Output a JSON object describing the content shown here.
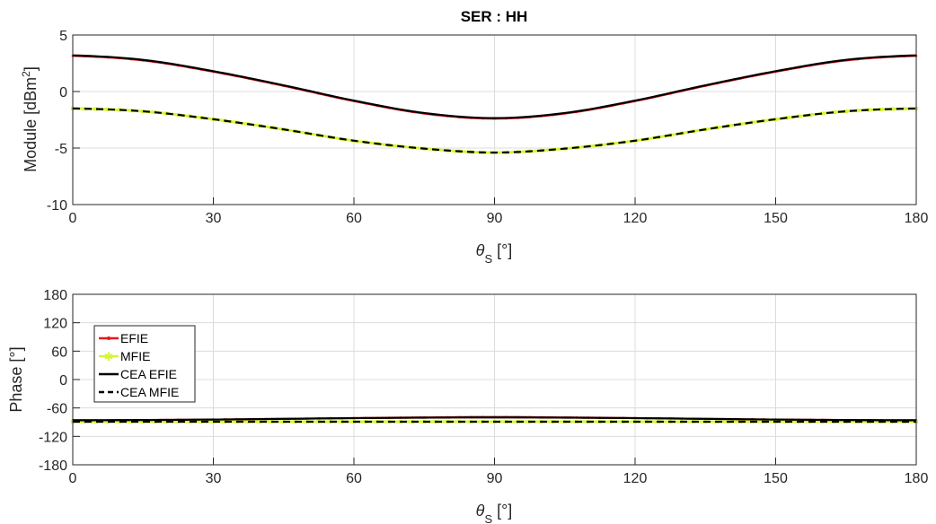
{
  "chart_data": [
    {
      "type": "line",
      "title": "SER  : HH",
      "xlabel": "θS [°]",
      "ylabel": "Module [dBm2]",
      "xlim": [
        0,
        180
      ],
      "ylim": [
        -10,
        5
      ],
      "xticks": [
        0,
        30,
        60,
        90,
        120,
        150,
        180
      ],
      "yticks": [
        -10,
        -5,
        0,
        5
      ],
      "grid": true,
      "x": [
        0,
        15,
        30,
        45,
        60,
        75,
        90,
        105,
        120,
        135,
        150,
        165,
        180
      ],
      "series": [
        {
          "name": "EFIE",
          "color": "#e8161b",
          "style": "solid-dots",
          "values": [
            3.15,
            2.75,
            1.75,
            0.5,
            -0.85,
            -1.95,
            -2.4,
            -1.95,
            -0.85,
            0.5,
            1.75,
            2.75,
            3.15
          ]
        },
        {
          "name": "MFIE",
          "color": "#d4f53a",
          "style": "solid-stars",
          "values": [
            -1.5,
            -1.75,
            -2.45,
            -3.35,
            -4.35,
            -5.05,
            -5.4,
            -5.05,
            -4.35,
            -3.35,
            -2.45,
            -1.75,
            -1.5
          ]
        },
        {
          "name": "CEA EFIE",
          "color": "#000000",
          "style": "solid",
          "values": [
            3.2,
            2.8,
            1.8,
            0.55,
            -0.8,
            -1.9,
            -2.35,
            -1.9,
            -0.8,
            0.55,
            1.8,
            2.8,
            3.2
          ]
        },
        {
          "name": "CEA MFIE",
          "color": "#000000",
          "style": "dashed",
          "values": [
            -1.5,
            -1.75,
            -2.45,
            -3.35,
            -4.35,
            -5.05,
            -5.4,
            -5.05,
            -4.35,
            -3.35,
            -2.45,
            -1.75,
            -1.5
          ]
        }
      ]
    },
    {
      "type": "line",
      "title": "",
      "xlabel": "θS [°]",
      "ylabel": "Phase [°]",
      "xlim": [
        0,
        180
      ],
      "ylim": [
        -180,
        180
      ],
      "xticks": [
        0,
        30,
        60,
        90,
        120,
        150,
        180
      ],
      "yticks": [
        -180,
        -120,
        -60,
        0,
        60,
        120,
        180
      ],
      "grid": true,
      "legend": "upper-left",
      "x": [
        0,
        15,
        30,
        45,
        60,
        75,
        90,
        105,
        120,
        135,
        150,
        165,
        180
      ],
      "series": [
        {
          "name": "EFIE",
          "color": "#e8161b",
          "style": "solid-dots",
          "values": [
            -86,
            -85.5,
            -84.5,
            -83,
            -81.5,
            -80,
            -79,
            -80,
            -81.5,
            -83,
            -84.5,
            -85.5,
            -86
          ]
        },
        {
          "name": "MFIE",
          "color": "#d4f53a",
          "style": "solid-stars",
          "values": [
            -89,
            -89,
            -89,
            -89,
            -89,
            -89,
            -89,
            -89,
            -89,
            -89,
            -89,
            -89,
            -89
          ]
        },
        {
          "name": "CEA EFIE",
          "color": "#000000",
          "style": "solid",
          "values": [
            -86,
            -85.5,
            -84.5,
            -83,
            -81.5,
            -80.5,
            -80,
            -80.5,
            -81.5,
            -83,
            -84.5,
            -85.5,
            -86
          ]
        },
        {
          "name": "CEA MFIE",
          "color": "#000000",
          "style": "dashed",
          "values": [
            -89,
            -89,
            -89,
            -89,
            -89,
            -89,
            -89,
            -89,
            -89,
            -89,
            -89,
            -89,
            -89
          ]
        }
      ]
    }
  ]
}
